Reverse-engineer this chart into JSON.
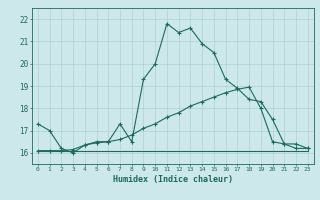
{
  "title": "",
  "xlabel": "Humidex (Indice chaleur)",
  "ylabel": "",
  "background_color": "#cce8ea",
  "line_color": "#1a6b5a",
  "grid_color": "#aed0d4",
  "xlim": [
    -0.5,
    23.5
  ],
  "ylim": [
    15.5,
    22.5
  ],
  "xticks": [
    0,
    1,
    2,
    3,
    4,
    5,
    6,
    7,
    8,
    9,
    10,
    11,
    12,
    13,
    14,
    15,
    16,
    17,
    18,
    19,
    20,
    21,
    22,
    23
  ],
  "yticks": [
    16,
    17,
    18,
    19,
    20,
    21,
    22
  ],
  "line1_x": [
    0,
    1,
    2,
    3,
    4,
    5,
    6,
    7,
    8,
    9,
    10,
    11,
    12,
    13,
    14,
    15,
    16,
    17,
    18,
    19,
    20,
    21,
    22,
    23
  ],
  "line1_y": [
    17.3,
    17.0,
    16.2,
    16.0,
    16.35,
    16.5,
    16.5,
    17.3,
    16.5,
    19.3,
    20.0,
    21.8,
    21.4,
    21.6,
    20.9,
    20.5,
    19.3,
    18.9,
    18.4,
    18.3,
    17.5,
    16.4,
    16.4,
    16.2
  ],
  "line2_x": [
    0,
    1,
    2,
    3,
    4,
    5,
    6,
    7,
    8,
    9,
    10,
    11,
    12,
    13,
    14,
    15,
    16,
    17,
    18,
    19,
    20,
    21,
    22,
    23
  ],
  "line2_y": [
    16.1,
    16.1,
    16.1,
    16.15,
    16.35,
    16.45,
    16.5,
    16.6,
    16.8,
    17.1,
    17.3,
    17.6,
    17.8,
    18.1,
    18.3,
    18.5,
    18.7,
    18.85,
    18.95,
    18.0,
    16.5,
    16.4,
    16.2,
    16.2
  ],
  "line3_x": [
    0,
    1,
    2,
    3,
    4,
    5,
    6,
    7,
    8,
    9,
    10,
    11,
    12,
    13,
    14,
    15,
    16,
    17,
    18,
    19,
    20,
    21,
    22,
    23
  ],
  "line3_y": [
    16.1,
    16.1,
    16.1,
    16.1,
    16.1,
    16.1,
    16.1,
    16.1,
    16.1,
    16.1,
    16.1,
    16.1,
    16.1,
    16.1,
    16.1,
    16.1,
    16.1,
    16.1,
    16.1,
    16.1,
    16.1,
    16.1,
    16.1,
    16.1
  ]
}
